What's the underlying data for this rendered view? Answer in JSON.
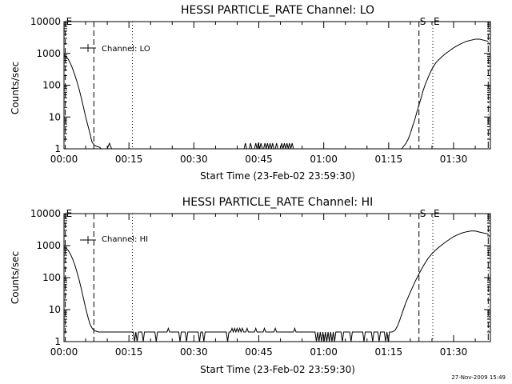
{
  "footer": {
    "stamp": "27-Nov-2009 15:49"
  },
  "chart_data": [
    {
      "type": "line",
      "title": "HESSI PARTICLE_RATE Channel: LO",
      "xlabel": "Start Time (23-Feb-02 23:59:30)",
      "ylabel": "Counts/sec",
      "yscale": "log",
      "ylim": [
        1,
        10000
      ],
      "xlim": [
        0,
        98.5
      ],
      "x_unit": "minutes after start time",
      "x_ticks": [
        0,
        15,
        30,
        45,
        60,
        75,
        90
      ],
      "x_tick_labels": [
        "00:00",
        "00:15",
        "00:30",
        "00:45",
        "01:00",
        "01:15",
        "01:30"
      ],
      "y_ticks": [
        1,
        10,
        100,
        1000,
        10000
      ],
      "y_tick_labels": [
        "1",
        "10",
        "100",
        "1000",
        "10000"
      ],
      "legend": {
        "label": "Channel: LO",
        "position": "top-left"
      },
      "markers": [
        {
          "x": 0.3,
          "style": "dash",
          "label": "E"
        },
        {
          "x": 6.9,
          "style": "dash",
          "label": ""
        },
        {
          "x": 15.8,
          "style": "dot",
          "label": ""
        },
        {
          "x": 82.0,
          "style": "dash",
          "label": "S"
        },
        {
          "x": 85.2,
          "style": "dot",
          "label": "E"
        },
        {
          "x": 98.0,
          "style": "dashdot",
          "label": ""
        }
      ],
      "series": [
        {
          "x": [
            0,
            0.5,
            1,
            1.5,
            2,
            2.5,
            3,
            3.5,
            4,
            4.5,
            5,
            5.5,
            6,
            6.3,
            6.5,
            7,
            7.5,
            8,
            8.3,
            8.6,
            9,
            10,
            10.5,
            11,
            11.5,
            12,
            41.6,
            41.9,
            42.2,
            42.8,
            43.1,
            43.4,
            44.0,
            44.3,
            44.6,
            44.9,
            45.2,
            45.5,
            45.8,
            46.1,
            46.4,
            46.7,
            47.0,
            47.3,
            47.6,
            47.9,
            48.2,
            48.5,
            48.8,
            49.1,
            49.4,
            50.0,
            50.3,
            50.6,
            50.9,
            51.2,
            51.5,
            51.8,
            52.1,
            52.4,
            52.7,
            53.0,
            53.3,
            78,
            79,
            79.5,
            80,
            80.5,
            81,
            81.5,
            82,
            82.5,
            83,
            83.5,
            84,
            84.5,
            85,
            85.5,
            86,
            87,
            88,
            89,
            90,
            91,
            92,
            93,
            94,
            95,
            96,
            97,
            98
          ],
          "y": [
            900,
            800,
            650,
            480,
            330,
            210,
            130,
            75,
            40,
            20,
            10,
            5.5,
            3,
            2,
            1.6,
            1.3,
            1.2,
            1.15,
            1.1,
            1,
            1,
            1,
            1.5,
            1,
            1,
            1,
            1,
            1.5,
            1,
            1,
            1.5,
            1,
            1,
            1.5,
            1,
            1.5,
            1,
            1.5,
            1,
            1,
            1.5,
            1,
            1.5,
            1,
            1.5,
            1,
            1.5,
            1,
            1,
            1.5,
            1,
            1,
            1.5,
            1,
            1.5,
            1,
            1.5,
            1,
            1.5,
            1,
            1.5,
            1,
            1,
            1,
            1.5,
            2,
            3,
            5,
            8,
            14,
            24,
            40,
            70,
            110,
            160,
            230,
            320,
            420,
            530,
            720,
            950,
            1200,
            1500,
            1800,
            2100,
            2400,
            2600,
            2800,
            2800,
            2600,
            2400
          ]
        }
      ]
    },
    {
      "type": "line",
      "title": "HESSI PARTICLE_RATE Channel: HI",
      "xlabel": "Start Time (23-Feb-02 23:59:30)",
      "ylabel": "Counts/sec",
      "yscale": "log",
      "ylim": [
        1,
        10000
      ],
      "xlim": [
        0,
        98.5
      ],
      "x_unit": "minutes after start time",
      "x_ticks": [
        0,
        15,
        30,
        45,
        60,
        75,
        90
      ],
      "x_tick_labels": [
        "00:00",
        "00:15",
        "00:30",
        "00:45",
        "01:00",
        "01:15",
        "01:30"
      ],
      "y_ticks": [
        1,
        10,
        100,
        1000,
        10000
      ],
      "y_tick_labels": [
        "1",
        "10",
        "100",
        "1000",
        "10000"
      ],
      "legend": {
        "label": "Channel: HI",
        "position": "top-left"
      },
      "markers": [
        {
          "x": 0.3,
          "style": "dash",
          "label": "E"
        },
        {
          "x": 6.9,
          "style": "dash",
          "label": ""
        },
        {
          "x": 15.8,
          "style": "dot",
          "label": ""
        },
        {
          "x": 82.0,
          "style": "dash",
          "label": "S"
        },
        {
          "x": 85.2,
          "style": "dot",
          "label": "E"
        },
        {
          "x": 98.0,
          "style": "dashdot",
          "label": ""
        }
      ],
      "series": [
        {
          "x": [
            0,
            0.5,
            1,
            1.5,
            2,
            2.5,
            3,
            3.5,
            4,
            4.5,
            5,
            5.5,
            6,
            6.5,
            7,
            7.5,
            8,
            9,
            10,
            16.0,
            16.3,
            16.6,
            16.9,
            17.2,
            18.0,
            18.3,
            18.6,
            21.0,
            21.3,
            21.6,
            23.8,
            24.1,
            24.4,
            26.5,
            26.8,
            27.1,
            28.0,
            28.3,
            28.6,
            31.0,
            31.3,
            31.6,
            32.0,
            32.3,
            32.6,
            37.5,
            37.8,
            38.1,
            38.5,
            38.8,
            39.1,
            39.4,
            39.7,
            40.0,
            40.3,
            40.6,
            40.9,
            41.2,
            41.5,
            42.0,
            42.3,
            42.6,
            44.0,
            44.3,
            44.6,
            46.0,
            46.3,
            46.6,
            48.5,
            48.8,
            49.1,
            53.0,
            53.3,
            53.6,
            58.0,
            58.3,
            58.6,
            58.9,
            59.2,
            59.5,
            59.8,
            60.1,
            60.4,
            60.7,
            61.0,
            61.3,
            61.6,
            61.9,
            62.2,
            62.5,
            62.8,
            63.1,
            64.0,
            64.3,
            64.6,
            66.0,
            66.3,
            66.6,
            69.0,
            69.3,
            69.6,
            71.0,
            71.3,
            71.6,
            72.5,
            72.8,
            73.1,
            74.0,
            74.3,
            74.6,
            74.9,
            75.2,
            75.5,
            75.8,
            76.5,
            77,
            77.5,
            78,
            78.5,
            79,
            80,
            81,
            82,
            83,
            84,
            85,
            86,
            87,
            88,
            89,
            90,
            91,
            92,
            93,
            94,
            95,
            96,
            97,
            98
          ],
          "y": [
            900,
            830,
            700,
            540,
            380,
            250,
            150,
            85,
            45,
            22,
            11,
            6,
            3.5,
            2.6,
            2.2,
            2.1,
            2,
            2,
            2,
            2,
            1,
            2,
            1,
            2,
            2,
            1,
            2,
            2,
            1,
            2,
            2,
            2.6,
            2,
            2,
            1,
            2,
            2,
            1,
            2,
            2,
            1,
            2,
            2,
            1,
            2,
            2,
            1,
            2,
            2,
            2.6,
            2,
            2.6,
            2,
            2.6,
            2,
            2.6,
            2,
            2.6,
            2,
            2,
            2.6,
            2,
            2,
            2.6,
            2,
            2,
            2.6,
            2,
            2,
            2.6,
            2,
            2,
            2.6,
            2,
            2,
            1,
            2,
            1,
            2,
            1,
            2,
            1,
            2,
            1,
            2,
            1,
            2,
            1,
            2,
            1,
            2,
            2,
            2,
            1,
            2,
            2,
            1,
            2,
            2,
            1,
            2,
            2,
            1,
            2,
            2,
            1,
            2,
            2,
            1,
            2,
            1,
            2,
            2,
            2,
            2.3,
            3,
            4.5,
            7,
            11,
            17,
            35,
            70,
            130,
            230,
            380,
            560,
            760,
            980,
            1250,
            1550,
            1900,
            2200,
            2500,
            2700,
            2850,
            2850,
            2650,
            2450,
            2300
          ]
        }
      ]
    }
  ]
}
